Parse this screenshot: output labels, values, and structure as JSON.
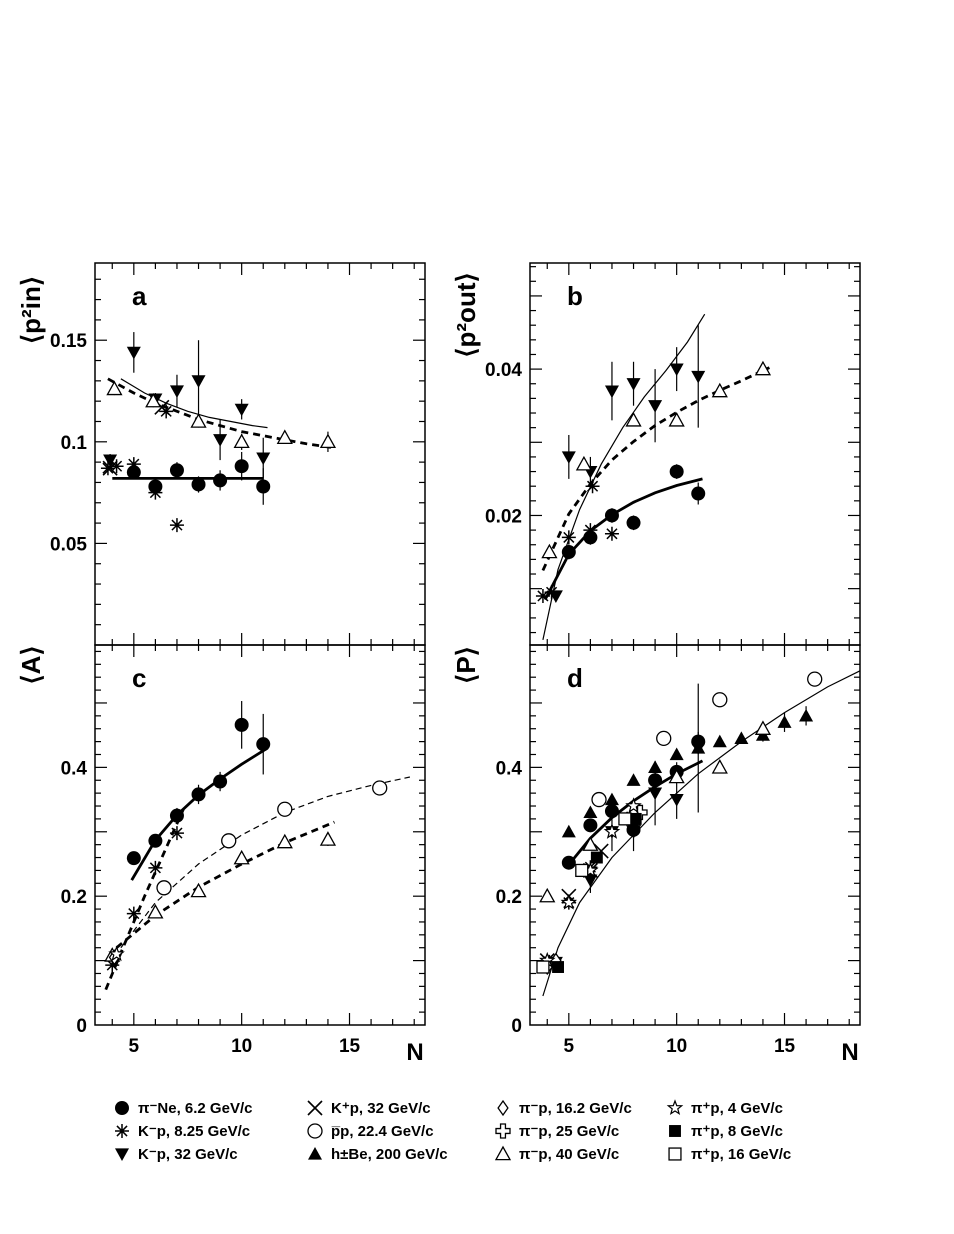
{
  "chart_data": [
    {
      "type": "scatter",
      "panel_label": "a",
      "ylabel": "⟨p²in⟩",
      "xlim": [
        3.2,
        18.5
      ],
      "ylim": [
        0.0,
        0.188
      ],
      "yticks": [
        0.05,
        0.1,
        0.15
      ],
      "ytick_labels": [
        "0.05",
        "0.1",
        "0.15"
      ],
      "series": [
        {
          "marker": "circle-filled",
          "x": [
            5,
            6,
            7,
            8,
            9,
            10,
            11
          ],
          "y": [
            0.085,
            0.078,
            0.086,
            0.079,
            0.081,
            0.088,
            0.078
          ],
          "err": [
            0.003,
            0.004,
            0.004,
            0.004,
            0.005,
            0.007,
            0.009
          ]
        },
        {
          "marker": "asterisk",
          "x": [
            3.8,
            4.2,
            5,
            6,
            6.5,
            7
          ],
          "y": [
            0.087,
            0.088,
            0.089,
            0.075,
            0.115,
            0.059
          ],
          "err": [
            0,
            0,
            0,
            0,
            0,
            0
          ]
        },
        {
          "marker": "triangle-down-filled",
          "x": [
            3.9,
            5,
            6,
            7,
            8,
            9,
            10,
            11
          ],
          "y": [
            0.091,
            0.144,
            0.121,
            0.125,
            0.13,
            0.101,
            0.116,
            0.092
          ],
          "err": [
            0.003,
            0.01,
            0.003,
            0.008,
            0.02,
            0.01,
            0.005,
            0.01
          ]
        },
        {
          "marker": "cross",
          "x": [
            3.9,
            6.3
          ],
          "y": [
            0.087,
            0.117
          ],
          "err": [
            0,
            0
          ]
        },
        {
          "marker": "triangle-open",
          "x": [
            4.1,
            5.9,
            8,
            10,
            12,
            14
          ],
          "y": [
            0.126,
            0.12,
            0.11,
            0.1,
            0.102,
            0.1
          ],
          "err": [
            0.003,
            0.003,
            0.003,
            0.004,
            0.002,
            0.005
          ]
        }
      ],
      "fits": [
        {
          "style": "solid-thick",
          "x": [
            4,
            11
          ],
          "y": [
            0.082,
            0.082
          ]
        },
        {
          "style": "solid-thin",
          "x": [
            4.4,
            5.5,
            6.5,
            7.5,
            8.5,
            9.5,
            10.5,
            11.2
          ],
          "y": [
            0.131,
            0.124,
            0.119,
            0.115,
            0.112,
            0.11,
            0.108,
            0.107
          ]
        },
        {
          "style": "dashed-thick",
          "x": [
            3.8,
            5,
            6,
            7,
            8,
            9,
            10,
            11,
            12,
            13,
            14.3
          ],
          "y": [
            0.131,
            0.124,
            0.119,
            0.115,
            0.111,
            0.108,
            0.105,
            0.103,
            0.101,
            0.099,
            0.097
          ]
        }
      ]
    },
    {
      "type": "scatter",
      "panel_label": "b",
      "ylabel": "⟨p²out⟩",
      "xlim": [
        3.2,
        18.5
      ],
      "ylim": [
        0.0023,
        0.0545
      ],
      "yticks": [
        0.02,
        0.04
      ],
      "ytick_labels": [
        "0.02",
        "0.04"
      ],
      "series": [
        {
          "marker": "circle-filled",
          "x": [
            5,
            6,
            7,
            8,
            10,
            11
          ],
          "y": [
            0.015,
            0.017,
            0.02,
            0.019,
            0.026,
            0.023
          ],
          "err": [
            0.001,
            0.001,
            0.001,
            0.001,
            0.001,
            0.0015
          ]
        },
        {
          "marker": "asterisk",
          "x": [
            3.8,
            4.2,
            5,
            6,
            6.1,
            7
          ],
          "y": [
            0.009,
            0.0095,
            0.017,
            0.018,
            0.024,
            0.0175
          ],
          "err": [
            0,
            0,
            0,
            0,
            0,
            0
          ]
        },
        {
          "marker": "triangle-down-filled",
          "x": [
            4.4,
            5,
            6,
            7,
            8,
            9,
            10,
            11
          ],
          "y": [
            0.009,
            0.028,
            0.026,
            0.037,
            0.038,
            0.035,
            0.04,
            0.039
          ],
          "err": [
            0.0005,
            0.003,
            0.002,
            0.004,
            0.003,
            0.005,
            0.003,
            0.007
          ]
        },
        {
          "marker": "triangle-open",
          "x": [
            4.1,
            5.7,
            8,
            10,
            12,
            14
          ],
          "y": [
            0.015,
            0.027,
            0.033,
            0.033,
            0.037,
            0.04
          ],
          "err": [
            0.0005,
            0.0005,
            0.0005,
            0.0005,
            0.0005,
            0.0008
          ]
        }
      ],
      "fits": [
        {
          "style": "solid-thick",
          "x": [
            3.9,
            5,
            6,
            7,
            8,
            9,
            10,
            11.2
          ],
          "y": [
            0.0085,
            0.0147,
            0.0179,
            0.0201,
            0.0218,
            0.0231,
            0.0241,
            0.025
          ]
        },
        {
          "style": "solid-thin",
          "x": [
            3.8,
            4.5,
            5.5,
            6.5,
            7.5,
            8.5,
            9.5,
            10.5,
            11.3
          ],
          "y": [
            0.003,
            0.0126,
            0.0208,
            0.027,
            0.032,
            0.0362,
            0.0398,
            0.0437,
            0.0475
          ]
        },
        {
          "style": "dashed-thick",
          "x": [
            3.8,
            5,
            6,
            7,
            8,
            9,
            10,
            11,
            12,
            13,
            14.3
          ],
          "y": [
            0.0125,
            0.0202,
            0.0243,
            0.0276,
            0.0301,
            0.0323,
            0.0341,
            0.0357,
            0.0371,
            0.0384,
            0.0402
          ]
        }
      ]
    },
    {
      "type": "scatter",
      "panel_label": "c",
      "ylabel": "⟨A⟩",
      "xlim": [
        3.2,
        18.5
      ],
      "ylim": [
        0,
        0.59
      ],
      "yticks": [
        0,
        0.2,
        0.4
      ],
      "ytick_labels": [
        "0",
        "0.2",
        "0.4"
      ],
      "xticks": [
        5,
        10,
        15
      ],
      "xtick_labels": [
        "5",
        "10",
        "15"
      ],
      "xlabel": "N",
      "series": [
        {
          "marker": "circle-filled",
          "x": [
            5,
            6,
            7,
            8,
            9,
            10,
            11
          ],
          "y": [
            0.259,
            0.286,
            0.325,
            0.358,
            0.378,
            0.466,
            0.436
          ],
          "err": [
            0.008,
            0.008,
            0.012,
            0.015,
            0.015,
            0.037,
            0.047
          ]
        },
        {
          "marker": "asterisk",
          "x": [
            4,
            5,
            6,
            7
          ],
          "y": [
            0.093,
            0.173,
            0.244,
            0.298
          ],
          "err": [
            0,
            0,
            0,
            0
          ]
        },
        {
          "marker": "circle-open",
          "x": [
            6.4,
            9.4,
            12,
            16.4
          ],
          "y": [
            0.213,
            0.286,
            0.335,
            0.368
          ],
          "err": [
            0,
            0,
            0,
            0.004
          ]
        },
        {
          "marker": "triangle-open",
          "x": [
            4,
            6,
            8,
            10,
            12,
            14
          ],
          "y": [
            0.108,
            0.175,
            0.208,
            0.259,
            0.284,
            0.288
          ],
          "err": [
            0,
            0,
            0,
            0,
            0,
            0.01
          ]
        },
        {
          "marker": "diamond-open",
          "x": [
            4.1
          ],
          "y": [
            0.105
          ],
          "err": [
            0
          ]
        },
        {
          "marker": "star",
          "x": [
            4.2
          ],
          "y": [
            0.11
          ],
          "err": [
            0
          ]
        }
      ],
      "fits": [
        {
          "style": "solid-thick",
          "x": [
            4.9,
            6,
            7,
            8,
            9,
            10,
            11.2
          ],
          "y": [
            0.225,
            0.287,
            0.326,
            0.357,
            0.382,
            0.405,
            0.43
          ]
        },
        {
          "style": "dashed-thick",
          "x": [
            3.7,
            4.5,
            5.5,
            6.5,
            7.3
          ],
          "y": [
            0.055,
            0.12,
            0.2,
            0.275,
            0.335
          ]
        },
        {
          "style": "dashed-thin",
          "x": [
            4.4,
            6,
            8,
            10,
            12,
            14,
            16,
            17.8
          ],
          "y": [
            0.12,
            0.19,
            0.25,
            0.295,
            0.33,
            0.355,
            0.372,
            0.385
          ]
        },
        {
          "style": "dashed-thick",
          "x": [
            4.2,
            6,
            8,
            10,
            12,
            14.3
          ],
          "y": [
            0.12,
            0.17,
            0.214,
            0.25,
            0.283,
            0.315
          ]
        }
      ]
    },
    {
      "type": "scatter",
      "panel_label": "d",
      "ylabel": "⟨P⟩",
      "xlim": [
        3.2,
        18.5
      ],
      "ylim": [
        0,
        0.59
      ],
      "yticks": [
        0,
        0.2,
        0.4
      ],
      "ytick_labels": [
        "0",
        "0.2",
        "0.4"
      ],
      "xticks": [
        5,
        10,
        15
      ],
      "xtick_labels": [
        "5",
        "10",
        "15"
      ],
      "xlabel": "N",
      "series": [
        {
          "marker": "circle-filled",
          "x": [
            5,
            6,
            7,
            8,
            9,
            10,
            11
          ],
          "y": [
            0.252,
            0.31,
            0.332,
            0.303,
            0.38,
            0.393,
            0.44
          ],
          "err": [
            0.008,
            0.008,
            0.01,
            0.012,
            0.015,
            0.015,
            0.015
          ]
        },
        {
          "marker": "asterisk",
          "x": [
            4.1,
            5,
            6
          ],
          "y": [
            0.098,
            0.19,
            0.245
          ],
          "err": [
            0,
            0,
            0
          ]
        },
        {
          "marker": "triangle-down-filled",
          "x": [
            4.4,
            6,
            7,
            8,
            9,
            10,
            11
          ],
          "y": [
            0.097,
            0.225,
            0.3,
            0.3,
            0.36,
            0.35,
            0.43
          ],
          "err": [
            0,
            0.02,
            0.03,
            0.03,
            0.05,
            0.03,
            0.1
          ]
        },
        {
          "marker": "cross",
          "x": [
            4,
            5,
            6,
            6.5,
            8
          ],
          "y": [
            0.1,
            0.2,
            0.24,
            0.27,
            0.32
          ],
          "err": [
            0,
            0,
            0,
            0,
            0
          ]
        },
        {
          "marker": "circle-open",
          "x": [
            6.4,
            9.4,
            12,
            16.4
          ],
          "y": [
            0.35,
            0.445,
            0.505,
            0.537
          ],
          "err": [
            0,
            0,
            0,
            0.005
          ]
        },
        {
          "marker": "triangle-filled",
          "x": [
            5,
            6,
            7,
            8,
            9,
            10,
            11,
            12,
            13,
            14,
            15,
            16
          ],
          "y": [
            0.3,
            0.33,
            0.35,
            0.38,
            0.4,
            0.42,
            0.43,
            0.44,
            0.445,
            0.45,
            0.47,
            0.48
          ],
          "err": [
            0.008,
            0.008,
            0.008,
            0.008,
            0.008,
            0.008,
            0.008,
            0.008,
            0.008,
            0.01,
            0.015,
            0.015
          ]
        },
        {
          "marker": "diamond-open",
          "x": [
            4,
            4.4
          ],
          "y": [
            0.09,
            0.1
          ],
          "err": [
            0,
            0
          ]
        },
        {
          "marker": "plus-open",
          "x": [
            8.3
          ],
          "y": [
            0.33
          ],
          "err": [
            0
          ]
        },
        {
          "marker": "triangle-open",
          "x": [
            4,
            6,
            8,
            10,
            12,
            14
          ],
          "y": [
            0.2,
            0.28,
            0.33,
            0.385,
            0.4,
            0.46
          ],
          "err": [
            0,
            0,
            0,
            0,
            0,
            0.01
          ]
        },
        {
          "marker": "star",
          "x": [
            4,
            5,
            6,
            7,
            8
          ],
          "y": [
            0.1,
            0.19,
            0.24,
            0.3,
            0.34
          ],
          "err": [
            0,
            0,
            0,
            0,
            0
          ]
        },
        {
          "marker": "square-filled",
          "x": [
            4.5,
            6.3,
            8.1
          ],
          "y": [
            0.09,
            0.26,
            0.32
          ],
          "err": [
            0,
            0,
            0
          ]
        },
        {
          "marker": "square-open",
          "x": [
            3.8,
            5.6,
            7.6
          ],
          "y": [
            0.09,
            0.24,
            0.32
          ],
          "err": [
            0,
            0,
            0
          ]
        }
      ],
      "fits": [
        {
          "style": "solid-thick",
          "x": [
            4.9,
            6,
            7,
            8,
            9,
            10,
            11.2
          ],
          "y": [
            0.245,
            0.29,
            0.322,
            0.348,
            0.37,
            0.39,
            0.41
          ]
        },
        {
          "style": "solid-thin",
          "x": [
            3.8,
            4.5,
            5.5,
            7,
            9,
            11,
            13,
            15,
            17,
            18.5
          ],
          "y": [
            0.045,
            0.12,
            0.19,
            0.26,
            0.33,
            0.39,
            0.44,
            0.485,
            0.525,
            0.55
          ]
        }
      ]
    }
  ],
  "legend": [
    {
      "marker": "circle-filled",
      "label": "π⁻Ne, 6.2 GeV/c"
    },
    {
      "marker": "asterisk",
      "label": "K⁻p, 8.25 GeV/c"
    },
    {
      "marker": "triangle-down-filled",
      "label": "K⁻p, 32 GeV/c"
    },
    {
      "marker": "cross",
      "label": "K⁺p, 32 GeV/c"
    },
    {
      "marker": "circle-open",
      "label": "p̅p, 22.4 GeV/c"
    },
    {
      "marker": "triangle-filled",
      "label": "h±Be, 200 GeV/c"
    },
    {
      "marker": "diamond-open",
      "label": "π⁻p, 16.2 GeV/c"
    },
    {
      "marker": "plus-open",
      "label": "π⁻p, 25 GeV/c"
    },
    {
      "marker": "triangle-open",
      "label": "π⁻p, 40 GeV/c"
    },
    {
      "marker": "star",
      "label": "π⁺p, 4 GeV/c"
    },
    {
      "marker": "square-filled",
      "label": "π⁺p, 8 GeV/c"
    },
    {
      "marker": "square-open",
      "label": "π⁺p, 16 GeV/c"
    }
  ]
}
